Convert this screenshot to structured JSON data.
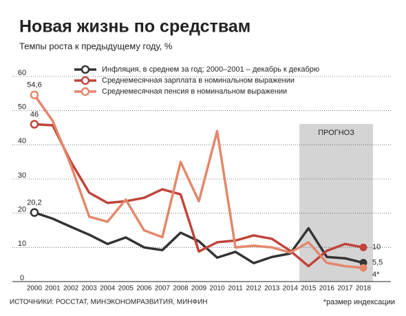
{
  "chart_data": {
    "type": "line",
    "title": "Новая жизнь по средствам",
    "subtitle": "Темпы роста к предыдущему году, %",
    "source": "ИСТОЧНИКИ: РОССТАТ, МИНЭКОНОМРАЗВИТИЯ, МИНФИН",
    "footnote": "*размер индексации",
    "forecast": {
      "label": "ПРОГНОЗ",
      "start": "2015"
    },
    "categories": [
      "2000",
      "2001",
      "2002",
      "2003",
      "2004",
      "2005",
      "2006",
      "2007",
      "2008",
      "2009",
      "2010",
      "2011",
      "2012",
      "2013",
      "2014",
      "2015",
      "2016",
      "2017",
      "2018"
    ],
    "series": [
      {
        "name": "Инфляция, в среднем за год; 2000–2001 – декабрь к декабрю",
        "color": "#333333",
        "values": [
          20.2,
          18.4,
          16,
          13.7,
          11,
          12.9,
          10,
          9.2,
          14.3,
          11.8,
          7,
          8.7,
          5.4,
          7.2,
          8.2,
          15.6,
          7.2,
          6.8,
          5.5
        ],
        "value_labels": [
          "20,2",
          null,
          null,
          null,
          null,
          null,
          null,
          null,
          null,
          null,
          null,
          null,
          null,
          null,
          null,
          null,
          null,
          null,
          "5,5"
        ]
      },
      {
        "name": "Среднемесячная зарплата в номинальном выражении",
        "color": "#c0433a",
        "values": [
          46,
          45.7,
          35,
          26,
          23,
          23.5,
          24.5,
          27,
          25.5,
          8.8,
          11.5,
          12,
          13.5,
          12.5,
          9,
          4.5,
          9,
          11,
          10
        ],
        "value_labels": [
          "46",
          null,
          null,
          null,
          null,
          null,
          null,
          null,
          null,
          null,
          null,
          null,
          null,
          null,
          null,
          null,
          null,
          null,
          "10"
        ]
      },
      {
        "name": "Среднемесячная пенсия в номинальном выражении",
        "color": "#e3876b",
        "values": [
          54.6,
          47,
          34,
          19,
          17.5,
          24,
          15,
          13,
          35,
          23.5,
          44,
          10,
          10.5,
          10,
          8.5,
          11.5,
          5.5,
          4.5,
          4
        ],
        "value_labels": [
          "54,6",
          null,
          null,
          null,
          null,
          null,
          null,
          null,
          null,
          null,
          null,
          null,
          null,
          null,
          null,
          null,
          null,
          null,
          "4*"
        ]
      }
    ],
    "ylim": [
      0,
      60
    ],
    "yticks": [
      0,
      10,
      20,
      30,
      40,
      50,
      60
    ],
    "grid": true
  }
}
